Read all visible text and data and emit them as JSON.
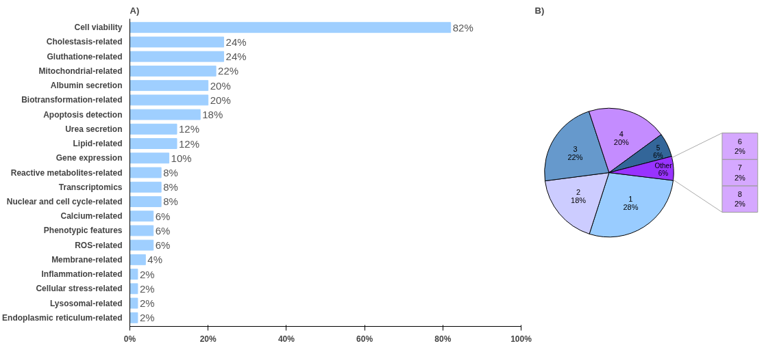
{
  "chart_data": [
    {
      "type": "bar",
      "title": "A)",
      "orientation": "horizontal",
      "categories": [
        "Cell viability",
        "Cholestasis-related",
        "Gluthatione-related",
        "Mitochondrial-related",
        "Albumin secretion",
        "Biotransformation-related",
        "Apoptosis detection",
        "Urea secretion",
        "Lipid-related",
        "Gene expression",
        "Reactive metabolites-related",
        "Transcriptomics",
        "Nuclear and cell cycle-related",
        "Calcium-related",
        "Phenotypic features",
        "ROS-related",
        "Membrane-related",
        "Inflammation-related",
        "Cellular stress-related",
        "Lysosomal-related",
        "Endoplasmic reticulum-related"
      ],
      "values": [
        82,
        24,
        24,
        22,
        20,
        20,
        18,
        12,
        12,
        10,
        8,
        8,
        8,
        6,
        6,
        6,
        4,
        2,
        2,
        2,
        2
      ],
      "value_labels": [
        "82%",
        "24%",
        "24%",
        "22%",
        "20%",
        "20%",
        "18%",
        "12%",
        "12%",
        "10%",
        "8%",
        "8%",
        "8%",
        "6%",
        "6%",
        "6%",
        "4%",
        "2%",
        "2%",
        "2%",
        "2%"
      ],
      "color": "#9fcfff",
      "xlim": [
        0,
        100
      ],
      "xticks": [
        {
          "value": 0,
          "label": "0%"
        },
        {
          "value": 20,
          "label": "20%"
        },
        {
          "value": 40,
          "label": "40%"
        },
        {
          "value": 60,
          "label": "60%"
        },
        {
          "value": 80,
          "label": "80%"
        },
        {
          "value": 100,
          "label": "100%"
        }
      ],
      "grid": false
    },
    {
      "type": "pie",
      "title": "B)",
      "categories": [
        "1",
        "2",
        "3",
        "4",
        "5",
        "Other"
      ],
      "values": [
        28,
        18,
        22,
        20,
        6,
        6
      ],
      "value_labels": [
        "28%",
        "18%",
        "22%",
        "20%",
        "6%",
        "6%"
      ],
      "colors": [
        "#99ccff",
        "#ccccff",
        "#6699cc",
        "#c48cff",
        "#336699",
        "#9933ff"
      ]
    },
    {
      "type": "bar",
      "stacked": true,
      "categories": [
        null
      ],
      "series": [
        {
          "name": "8",
          "color": "#d5a8ff",
          "values": [
            2
          ],
          "value_labels": [
            "2%"
          ]
        },
        {
          "name": "7",
          "color": "#d5a8ff",
          "values": [
            2
          ],
          "value_labels": [
            "2%"
          ]
        },
        {
          "name": "6",
          "color": "#d5a8ff",
          "values": [
            2
          ],
          "value_labels": [
            "2%"
          ]
        }
      ]
    }
  ]
}
